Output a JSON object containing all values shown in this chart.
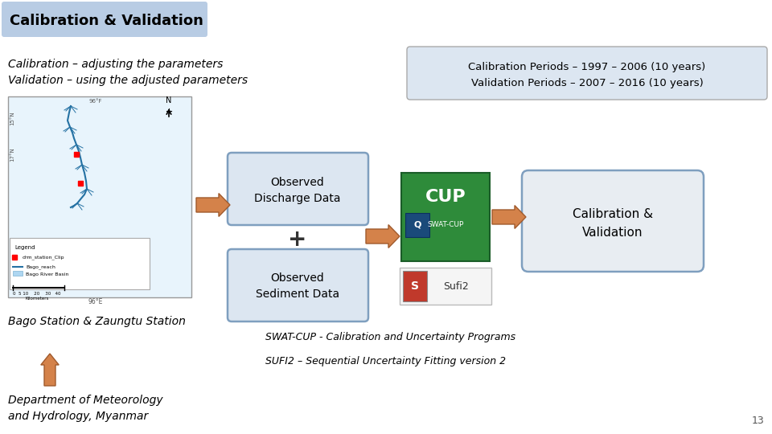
{
  "slide_bg": "#ffffff",
  "title": "Calibration & Validation",
  "title_bg": "#b8cce4",
  "title_color": "#000000",
  "title_fontsize": 13,
  "line1": "Calibration – adjusting the parameters",
  "line2": "Validation – using the adjusted parameters",
  "period_line1": "Calibration Periods – 1997 – 2006 (10 years)",
  "period_line2": "Validation Periods – 2007 – 2016 (10 years)",
  "period_box_color": "#dce6f1",
  "box1_text": "Observed\nDischarge Data",
  "box2_text": "Observed\nSediment Data",
  "box3_text": "Calibration &\nValidation",
  "box_fill": "#dce6f1",
  "box_edge": "#7f9fbf",
  "swatcup_text": "SWAT-CUP - Calibration and Uncertainty Programs",
  "sufi2_text": "SUFI2 – Sequential Uncertainty Fitting version 2",
  "bago_text": "Bago Station & Zaungtu Station",
  "dept_line1": "Department of Meteorology",
  "dept_line2": "and Hydrology, Myanmar",
  "page_num": "13",
  "arrow_color": "#d4824a",
  "arrow_edge_color": "#a05a2c",
  "plus_color": "#000000",
  "cup_green": "#2e8b3a",
  "cup_dark_green": "#1a5c28",
  "sufi_red": "#c0392b",
  "map_bg": "#e8f4fc",
  "map_basin_color": "#aed6f1",
  "map_river_color": "#2471a3",
  "map_border": "#999999"
}
